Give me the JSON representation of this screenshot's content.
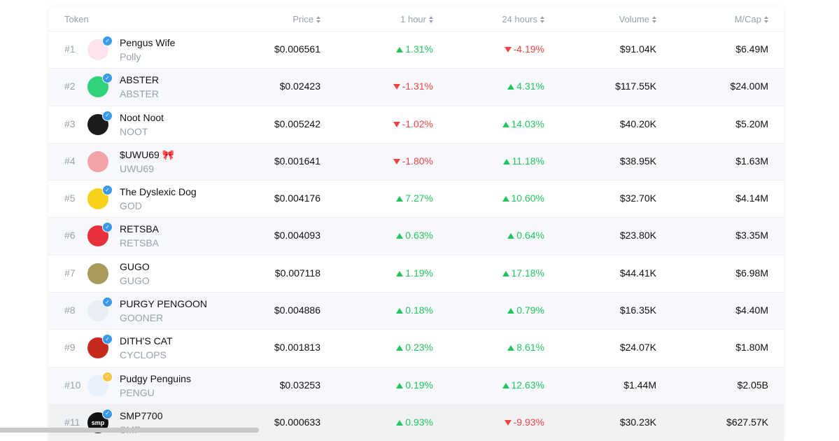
{
  "header": {
    "token": "Token",
    "price": "Price",
    "h1": "1 hour",
    "h24": "24 hours",
    "volume": "Volume",
    "mcap": "M/Cap"
  },
  "colors": {
    "up": "#22c55e",
    "down": "#ef4444",
    "verified_blue": "#3b9ae8",
    "verified_gold": "#f4c542"
  },
  "rows": [
    {
      "rank": "#1",
      "name": "Pengus Wife",
      "symbol": "Polly",
      "price": "$0.006561",
      "h1": "1.31%",
      "h1_dir": "up",
      "h24": "-4.19%",
      "h24_dir": "down",
      "volume": "$91.04K",
      "mcap": "$6.49M",
      "avatar": "pengus-wife-avatar",
      "avatar_bg": "#fde4ec",
      "verified": "blue"
    },
    {
      "rank": "#2",
      "name": "ABSTER",
      "symbol": "ABSTER",
      "price": "$0.02423",
      "h1": "-1.31%",
      "h1_dir": "down",
      "h24": "4.31%",
      "h24_dir": "up",
      "volume": "$117.55K",
      "mcap": "$24.00M",
      "avatar": "abster-avatar",
      "avatar_bg": "#2fd17a",
      "verified": "blue"
    },
    {
      "rank": "#3",
      "name": "Noot Noot",
      "symbol": "NOOT",
      "price": "$0.005242",
      "h1": "-1.02%",
      "h1_dir": "down",
      "h24": "14.03%",
      "h24_dir": "up",
      "volume": "$40.20K",
      "mcap": "$5.20M",
      "avatar": "noot-avatar",
      "avatar_bg": "#1b1b1b",
      "verified": "blue"
    },
    {
      "rank": "#4",
      "name": "$UWU69 🎀",
      "symbol": "UWU69",
      "price": "$0.001641",
      "h1": "-1.80%",
      "h1_dir": "down",
      "h24": "11.18%",
      "h24_dir": "up",
      "volume": "$38.95K",
      "mcap": "$1.63M",
      "avatar": "uwu69-avatar",
      "avatar_bg": "#f3a3a8",
      "verified": "none"
    },
    {
      "rank": "#5",
      "name": "The Dyslexic Dog",
      "symbol": "GOD",
      "price": "$0.004176",
      "h1": "7.27%",
      "h1_dir": "up",
      "h24": "10.60%",
      "h24_dir": "up",
      "volume": "$32.70K",
      "mcap": "$4.14M",
      "avatar": "dyslexic-dog-avatar",
      "avatar_bg": "#f7d21c",
      "verified": "blue"
    },
    {
      "rank": "#6",
      "name": "RETSBA",
      "symbol": "RETSBA",
      "price": "$0.004093",
      "h1": "0.63%",
      "h1_dir": "up",
      "h24": "0.64%",
      "h24_dir": "up",
      "volume": "$23.80K",
      "mcap": "$3.35M",
      "avatar": "retsba-avatar",
      "avatar_bg": "#e8313b",
      "verified": "blue"
    },
    {
      "rank": "#7",
      "name": "GUGO",
      "symbol": "GUGO",
      "price": "$0.007118",
      "h1": "1.19%",
      "h1_dir": "up",
      "h24": "17.18%",
      "h24_dir": "up",
      "volume": "$44.41K",
      "mcap": "$6.98M",
      "avatar": "gugo-avatar",
      "avatar_bg": "#a89a5a",
      "verified": "none"
    },
    {
      "rank": "#8",
      "name": "PURGY PENGOON",
      "symbol": "GOONER",
      "price": "$0.004886",
      "h1": "0.18%",
      "h1_dir": "up",
      "h24": "0.79%",
      "h24_dir": "up",
      "volume": "$16.35K",
      "mcap": "$4.40M",
      "avatar": "purgy-pengoon-avatar",
      "avatar_bg": "#e9eef5",
      "verified": "blue"
    },
    {
      "rank": "#9",
      "name": "DITH'S CAT",
      "symbol": "CYCLOPS",
      "price": "$0.001813",
      "h1": "0.23%",
      "h1_dir": "up",
      "h24": "8.61%",
      "h24_dir": "up",
      "volume": "$24.07K",
      "mcap": "$1.80M",
      "avatar": "diths-cat-avatar",
      "avatar_bg": "#c62a1f",
      "verified": "blue"
    },
    {
      "rank": "#10",
      "name": "Pudgy Penguins",
      "symbol": "PENGU",
      "price": "$0.03253",
      "h1": "0.19%",
      "h1_dir": "up",
      "h24": "12.63%",
      "h24_dir": "up",
      "volume": "$1.44M",
      "mcap": "$2.05B",
      "avatar": "pudgy-penguins-avatar",
      "avatar_bg": "#e7f0fb",
      "verified": "gold"
    },
    {
      "rank": "#11",
      "name": "SMP7700",
      "symbol": "SMP",
      "price": "$0.000633",
      "h1": "0.93%",
      "h1_dir": "up",
      "h24": "-9.93%",
      "h24_dir": "down",
      "volume": "$30.23K",
      "mcap": "$627.57K",
      "avatar": "smp-avatar",
      "avatar_bg": "#111111",
      "avatar_text": "smp",
      "verified": "blue"
    }
  ]
}
